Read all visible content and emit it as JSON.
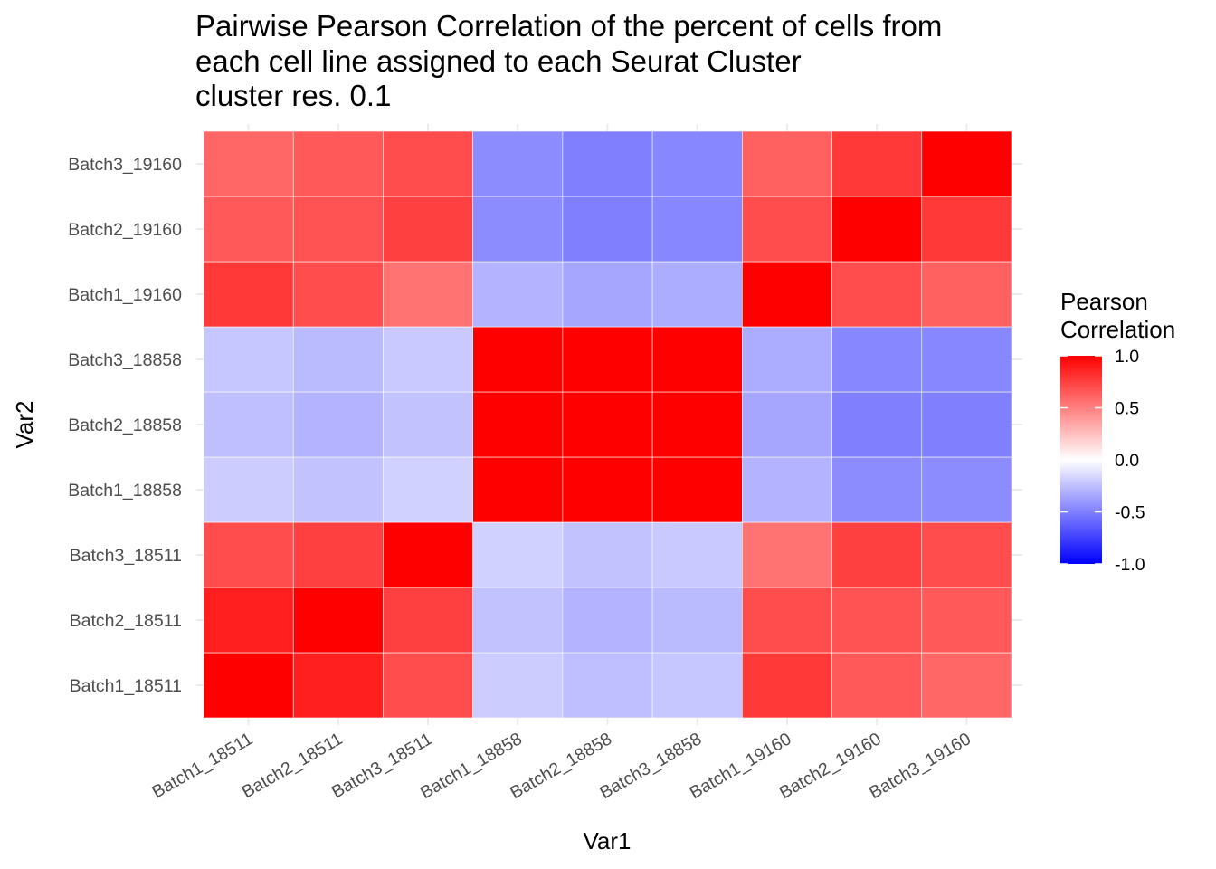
{
  "chart_data": {
    "type": "heatmap",
    "title_lines": [
      "Pairwise Pearson Correlation of the percent of cells from",
      "each cell line assigned to each Seurat Cluster",
      "cluster res. 0.1"
    ],
    "xlabel": "Var1",
    "ylabel": "Var2",
    "x_categories": [
      "Batch1_18511",
      "Batch2_18511",
      "Batch3_18511",
      "Batch1_18858",
      "Batch2_18858",
      "Batch3_18858",
      "Batch1_19160",
      "Batch2_19160",
      "Batch3_19160"
    ],
    "y_categories": [
      "Batch1_18511",
      "Batch2_18511",
      "Batch3_18511",
      "Batch1_18858",
      "Batch2_18858",
      "Batch3_18858",
      "Batch1_19160",
      "Batch2_19160",
      "Batch3_19160"
    ],
    "values": [
      [
        1.0,
        0.88,
        0.7,
        -0.2,
        -0.25,
        -0.22,
        0.78,
        0.65,
        0.6
      ],
      [
        0.88,
        1.0,
        0.75,
        -0.24,
        -0.3,
        -0.27,
        0.7,
        0.68,
        0.65
      ],
      [
        0.7,
        0.75,
        1.0,
        -0.18,
        -0.24,
        -0.21,
        0.55,
        0.75,
        0.7
      ],
      [
        -0.2,
        -0.24,
        -0.18,
        1.0,
        1.0,
        1.0,
        -0.3,
        -0.45,
        -0.45
      ],
      [
        -0.25,
        -0.3,
        -0.24,
        1.0,
        1.0,
        1.0,
        -0.35,
        -0.5,
        -0.5
      ],
      [
        -0.22,
        -0.27,
        -0.21,
        1.0,
        1.0,
        1.0,
        -0.32,
        -0.47,
        -0.47
      ],
      [
        0.78,
        0.7,
        0.55,
        -0.3,
        -0.35,
        -0.32,
        1.0,
        0.7,
        0.62
      ],
      [
        0.65,
        0.68,
        0.75,
        -0.45,
        -0.5,
        -0.47,
        0.7,
        1.0,
        0.78
      ],
      [
        0.6,
        0.65,
        0.7,
        -0.45,
        -0.5,
        -0.47,
        0.62,
        0.78,
        1.0
      ]
    ],
    "color_scale": {
      "low": "#0000ff",
      "mid": "#ffffff",
      "high": "#ff0000",
      "limits": [
        -1,
        1
      ]
    },
    "legend": {
      "title_lines": [
        "Pearson",
        "Correlation"
      ],
      "placement": "right",
      "ticks": [
        1.0,
        0.5,
        0.0,
        -0.5,
        -1.0
      ],
      "tick_labels": [
        "1.0",
        "0.5",
        "0.0",
        "-0.5",
        "-1.0"
      ]
    },
    "grid": true,
    "colors": {
      "grid": "#ebebeb",
      "tile_border": "#ffffff",
      "tick_text": "#4d4d4d",
      "text": "#000000"
    }
  }
}
